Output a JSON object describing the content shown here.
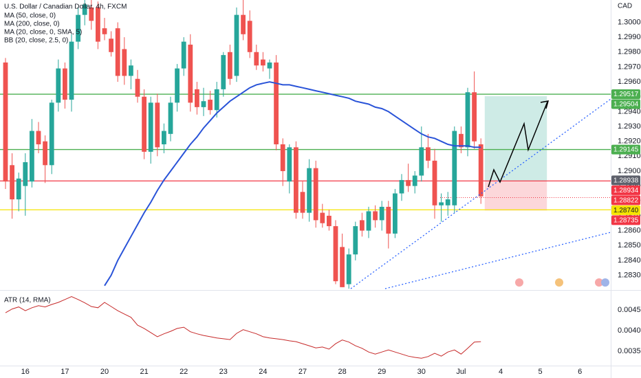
{
  "chart_data": [
    {
      "type": "candlestick",
      "title": "U.S. Dollar / Canadian Dollar, 4h, FXCM",
      "currency": "CAD",
      "indicators": [
        "MA (200, close, 0)",
        "MA (20, close, 0, SMA, 5)",
        "BB (20, close, 2.5, 0)"
      ],
      "up_color": "#26a69a",
      "down_color": "#ef5350",
      "grid": false,
      "ylim": [
        1.2821,
        1.3015
      ],
      "yticks": [
        {
          "value": 1.283,
          "label": "1.28300"
        },
        {
          "value": 1.284,
          "label": "1.28400"
        },
        {
          "value": 1.285,
          "label": "1.28500"
        },
        {
          "value": 1.286,
          "label": "1.28600"
        },
        {
          "value": 1.287,
          "label": "1.28700"
        },
        {
          "value": 1.288,
          "label": "1.28800"
        },
        {
          "value": 1.289,
          "label": "1.28900"
        },
        {
          "value": 1.29,
          "label": "1.29000"
        },
        {
          "value": 1.291,
          "label": "1.29100"
        },
        {
          "value": 1.292,
          "label": "1.29200"
        },
        {
          "value": 1.293,
          "label": "1.29300"
        },
        {
          "value": 1.294,
          "label": "1.29400"
        },
        {
          "value": 1.295,
          "label": "1.29500"
        },
        {
          "value": 1.296,
          "label": "1.29600"
        },
        {
          "value": 1.297,
          "label": "1.29700"
        },
        {
          "value": 1.298,
          "label": "1.29800"
        },
        {
          "value": 1.299,
          "label": "1.29900"
        },
        {
          "value": 1.3,
          "label": "1.30000"
        }
      ],
      "x": [
        null,
        null,
        null,
        "16",
        null,
        null,
        null,
        null,
        null,
        "17",
        null,
        null,
        null,
        null,
        null,
        "20",
        null,
        null,
        null,
        null,
        null,
        "21",
        null,
        null,
        null,
        null,
        null,
        "22",
        null,
        null,
        null,
        null,
        null,
        "23",
        null,
        null,
        null,
        null,
        null,
        "24",
        null,
        null,
        null,
        null,
        null,
        "27",
        null,
        null,
        null,
        null,
        null,
        "28",
        null,
        null,
        null,
        null,
        null,
        "29",
        null,
        null,
        null,
        null,
        null,
        "30",
        null,
        null,
        null,
        null,
        null,
        "Jul",
        null,
        null,
        null,
        null,
        null,
        "4",
        null,
        null,
        null,
        null,
        null,
        "5",
        null,
        null,
        null,
        null,
        null,
        "6",
        null,
        null,
        null,
        null,
        null
      ],
      "candles": {
        "open": [
          1.2973,
          1.2904,
          1.2881,
          1.289,
          1.2893,
          1.2927,
          1.292,
          1.2904,
          1.2946,
          1.2969,
          1.2948,
          1.2987,
          1.3005,
          1.301,
          1.301,
          1.2996,
          1.2989,
          1.2996,
          1.2982,
          1.2964,
          1.2962,
          1.295,
          1.2913,
          1.2946,
          1.2918,
          1.2925,
          1.2946,
          1.2969,
          1.2985,
          1.2955,
          1.2943,
          1.2948,
          1.2941,
          1.2955,
          1.298,
          1.2964,
          1.3005,
          1.3001,
          1.298,
          1.2975,
          1.2969,
          1.2973,
          1.2918,
          1.2893,
          1.2916,
          1.2886,
          1.2872,
          1.2902,
          1.2872,
          1.287,
          1.2863,
          1.2849,
          1.2824,
          1.2844,
          1.2867,
          1.286,
          1.2873,
          1.2867,
          1.2876,
          1.2858,
          1.2885,
          1.2894,
          1.289,
          1.2897,
          1.2916,
          1.2907,
          1.2877,
          1.2877,
          1.2877,
          1.2925,
          1.2916,
          1.2953,
          1.2918,
          null,
          null,
          null,
          null,
          null,
          null,
          null,
          null,
          null,
          null,
          null,
          null,
          null,
          null,
          null,
          null,
          null,
          null,
          null,
          null
        ],
        "high": [
          1.2976,
          1.2912,
          1.2899,
          1.2912,
          1.2935,
          1.2933,
          1.2924,
          1.2948,
          1.2975,
          1.2973,
          1.2992,
          1.301,
          1.3015,
          1.3015,
          1.3014,
          1.3003,
          1.2994,
          1.3,
          1.299,
          1.2975,
          1.2968,
          1.2955,
          1.295,
          1.2952,
          1.2932,
          1.295,
          1.2972,
          1.299,
          1.2992,
          1.296,
          1.2956,
          1.2954,
          1.296,
          1.298,
          1.2985,
          1.301,
          1.3015,
          1.3008,
          1.2985,
          1.298,
          1.2975,
          1.2978,
          1.2922,
          1.2918,
          1.292,
          1.2893,
          1.2908,
          1.2907,
          1.2878,
          1.2874,
          1.2867,
          1.2858,
          1.2848,
          1.2866,
          1.2872,
          1.2876,
          1.2877,
          1.288,
          1.288,
          1.2888,
          1.2898,
          1.2905,
          1.29,
          1.293,
          1.2925,
          1.2915,
          1.2885,
          1.2886,
          1.293,
          1.293,
          1.2956,
          1.2967,
          1.2922,
          null,
          null,
          null,
          null,
          null,
          null,
          null,
          null,
          null,
          null,
          null,
          null,
          null,
          null,
          null,
          null,
          null,
          null,
          null,
          null
        ],
        "low": [
          1.2888,
          1.2868,
          1.2873,
          1.287,
          1.2889,
          1.2912,
          1.2892,
          1.2898,
          1.294,
          1.2942,
          1.294,
          1.2982,
          1.2998,
          1.2995,
          1.2982,
          1.2988,
          1.2977,
          1.296,
          1.2958,
          1.2955,
          1.2946,
          1.2908,
          1.2905,
          1.291,
          1.2912,
          1.292,
          1.294,
          1.2964,
          1.294,
          1.2938,
          1.2937,
          1.2938,
          1.2936,
          1.295,
          1.2958,
          1.296,
          1.2988,
          1.2976,
          1.2968,
          1.2967,
          1.2962,
          1.2914,
          1.289,
          1.2885,
          1.2868,
          1.2868,
          1.2866,
          1.2862,
          1.2862,
          1.286,
          1.2824,
          1.2822,
          1.2821,
          1.284,
          1.2856,
          1.2855,
          1.2862,
          1.286,
          1.2848,
          1.2855,
          1.288,
          1.2886,
          1.2885,
          1.2893,
          1.2902,
          1.2868,
          1.2866,
          1.287,
          1.2872,
          1.2912,
          1.291,
          1.2915,
          1.2878,
          null,
          null,
          null,
          null,
          null,
          null,
          null,
          null,
          null,
          null,
          null,
          null,
          null,
          null,
          null,
          null,
          null,
          null,
          null,
          null
        ],
        "close": [
          1.2893,
          1.2881,
          1.2895,
          1.2906,
          1.2927,
          1.2918,
          1.2904,
          1.2946,
          1.2969,
          1.2948,
          1.2987,
          1.3005,
          1.3012,
          1.3001,
          1.2987,
          1.2992,
          1.298,
          1.2964,
          1.2964,
          1.2971,
          1.295,
          1.2913,
          1.2946,
          1.2916,
          1.2927,
          1.2946,
          1.2969,
          1.2987,
          1.2946,
          1.2943,
          1.2947,
          1.2941,
          1.2955,
          1.2978,
          1.2962,
          1.3005,
          1.2992,
          1.298,
          1.2971,
          1.2971,
          1.2973,
          1.2918,
          1.29,
          1.2916,
          1.2872,
          1.2872,
          1.2902,
          1.2867,
          1.2865,
          1.2863,
          1.2826,
          1.2822,
          1.2844,
          1.2863,
          1.286,
          1.2873,
          1.2867,
          1.2876,
          1.2858,
          1.2885,
          1.2894,
          1.289,
          1.2897,
          1.2916,
          1.2907,
          1.2877,
          1.2879,
          1.2881,
          1.2927,
          1.2916,
          1.2953,
          1.292,
          1.2883,
          null,
          null,
          null,
          null,
          null,
          null,
          null,
          null,
          null,
          null,
          null,
          null,
          null,
          null,
          null,
          null,
          null,
          null,
          null,
          null
        ]
      },
      "series": [
        {
          "name": "MA (50, close, 0)",
          "color": "#2953d8",
          "values": [
            null,
            null,
            null,
            null,
            null,
            null,
            null,
            null,
            null,
            null,
            null,
            null,
            null,
            null,
            null,
            1.2823,
            1.283,
            1.284,
            1.2848,
            1.2856,
            1.2864,
            1.2872,
            1.2879,
            1.2887,
            1.2894,
            1.29,
            1.2906,
            1.2912,
            1.2918,
            1.2923,
            1.2929,
            1.2934,
            1.2939,
            1.2943,
            1.2947,
            1.295,
            1.2953,
            1.2956,
            1.2958,
            1.2959,
            1.296,
            1.2959,
            1.2958,
            1.2958,
            1.2957,
            1.2956,
            1.2955,
            1.2954,
            1.2953,
            1.2952,
            1.2951,
            1.295,
            1.2949,
            1.2947,
            1.2946,
            1.2945,
            1.2943,
            1.2942,
            1.294,
            1.2937,
            1.2934,
            1.2931,
            1.2928,
            1.2925,
            1.2923,
            1.2922,
            1.292,
            1.2918,
            1.2917,
            1.2917,
            1.2917,
            1.2916,
            1.2916,
            null,
            null,
            null,
            null,
            null,
            null,
            null,
            null,
            null,
            null,
            null,
            null,
            null,
            null,
            null,
            null,
            null,
            null,
            null,
            null
          ]
        }
      ],
      "price_labels": [
        {
          "value": 1.29517,
          "label": "1.29517",
          "color": "#4caf50",
          "text_color": "#ffffff",
          "line": "solid"
        },
        {
          "value": 1.29504,
          "label": "1.29504",
          "color": "#4caf50",
          "text_color": "#ffffff"
        },
        {
          "value": 1.29145,
          "label": "1.29145",
          "color": "#4caf50",
          "text_color": "#ffffff",
          "line": "solid"
        },
        {
          "value": 1.28938,
          "label": "1.28938",
          "color": "#5d606b",
          "text_color": "#ffffff"
        },
        {
          "value": 1.28934,
          "label": "1.28934",
          "color": "#f23645",
          "text_color": "#ffffff",
          "line": "solid"
        },
        {
          "value": 1.28822,
          "label": "1.28822",
          "color": "#f23645",
          "text_color": "#ffffff",
          "line": "dotted"
        },
        {
          "value": 1.2874,
          "label": "1.28740",
          "color": "#f5e400",
          "text_color": "#131722",
          "line": "solid"
        },
        {
          "value": 1.28735,
          "label": "1.28735",
          "color": "#f23645",
          "text_color": "#ffffff"
        }
      ]
    },
    {
      "type": "line",
      "title": "ATR (14, RMA)",
      "color": "#c62828",
      "ylim": [
        0.00315,
        0.00493
      ],
      "yticks": [
        {
          "value": 0.0035,
          "label": "0.00350"
        },
        {
          "value": 0.004,
          "label": "0.00400"
        },
        {
          "value": 0.0045,
          "label": "0.00450"
        }
      ],
      "values": [
        0.00443,
        0.00452,
        0.00457,
        0.00448,
        0.00455,
        0.0046,
        0.00457,
        0.00463,
        0.00468,
        0.00475,
        0.00482,
        0.00475,
        0.00467,
        0.00458,
        0.00455,
        0.00468,
        0.00458,
        0.00448,
        0.0044,
        0.00432,
        0.00413,
        0.00405,
        0.00395,
        0.00385,
        0.00392,
        0.00398,
        0.00405,
        0.00408,
        0.00397,
        0.00392,
        0.00388,
        0.00385,
        0.00382,
        0.0038,
        0.00378,
        0.00393,
        0.00402,
        0.00397,
        0.00392,
        0.00385,
        0.00382,
        0.0038,
        0.00378,
        0.00375,
        0.00373,
        0.00368,
        0.00363,
        0.00358,
        0.0036,
        0.00355,
        0.00368,
        0.00377,
        0.00372,
        0.00363,
        0.00357,
        0.00348,
        0.00343,
        0.00348,
        0.00353,
        0.00348,
        0.00343,
        0.00338,
        0.00335,
        0.00333,
        0.00337,
        0.00345,
        0.00338,
        0.00348,
        0.00353,
        0.00343,
        0.00357,
        0.00372,
        0.00373,
        null,
        null,
        null,
        null,
        null,
        null,
        null,
        null,
        null,
        null,
        null,
        null,
        null,
        null,
        null,
        null,
        null,
        null,
        null,
        null
      ]
    }
  ]
}
